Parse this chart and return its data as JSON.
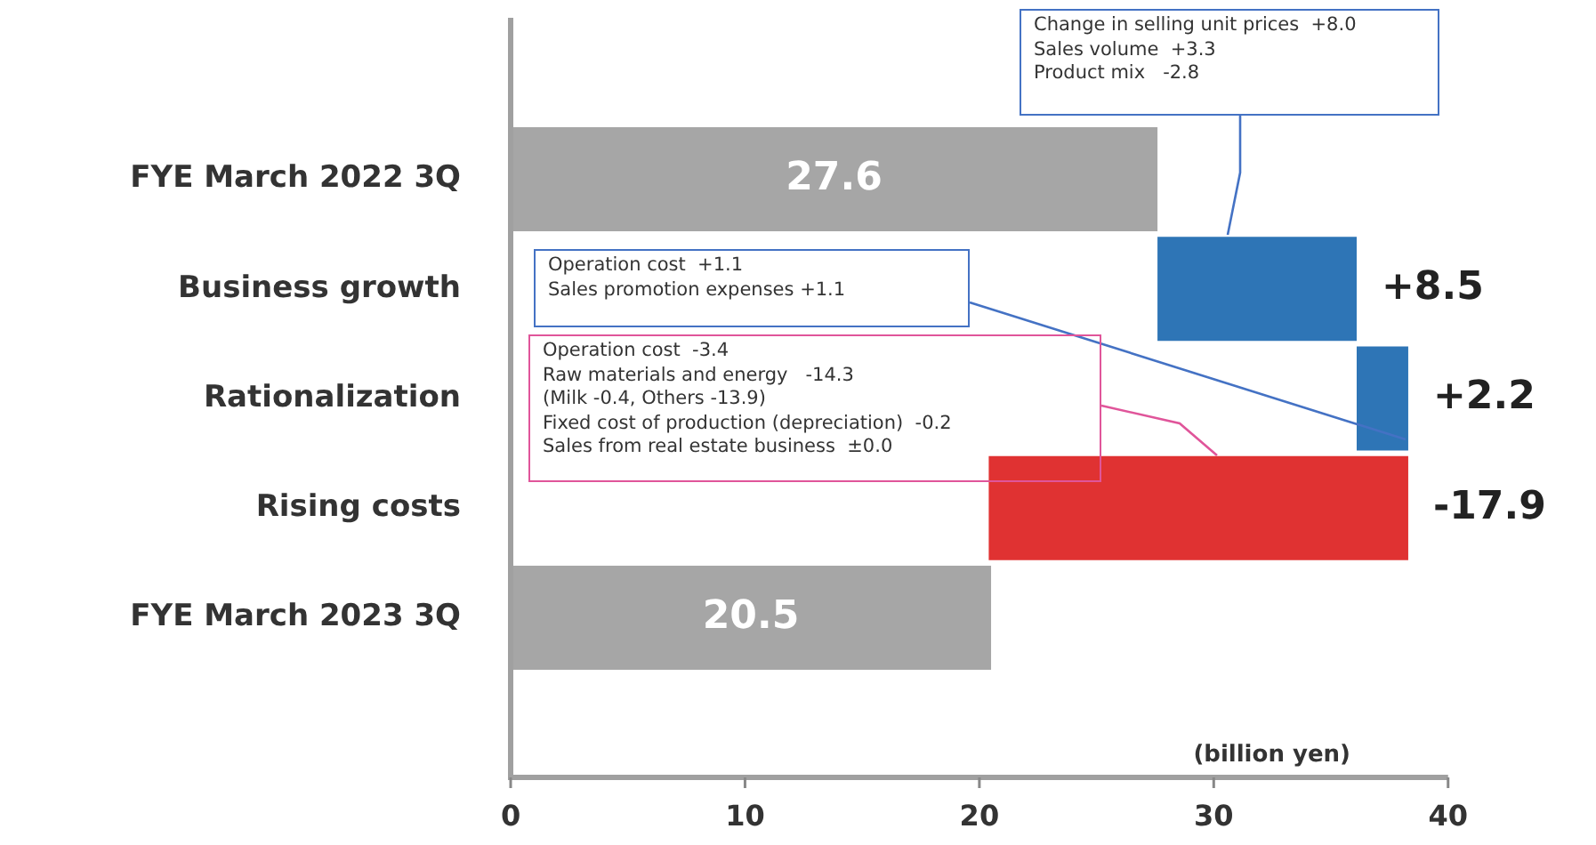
{
  "chart_data": {
    "type": "bar",
    "orientation": "horizontal",
    "xlabel": "(billion yen)",
    "categories": [
      "FYE March 2022 3Q",
      "Business growth",
      "Rationalization",
      "Rising costs",
      "FYE March 2023 3Q"
    ],
    "base": [
      0,
      27.6,
      36.1,
      38.3,
      0
    ],
    "values": [
      27.6,
      8.5,
      2.2,
      -17.9,
      20.5
    ],
    "colors": [
      "#a6a6a6",
      "#2e75b6",
      "#2e75b6",
      "#e03232",
      "#a6a6a6"
    ],
    "value_labels": [
      "27.6",
      "+8.5",
      "+2.2",
      "-17.9",
      "20.5"
    ],
    "xlim": [
      0,
      40
    ],
    "xticks": [
      0,
      10,
      20,
      30,
      40
    ],
    "grid": false,
    "legend": false,
    "annotations": [
      "Change in selling unit prices  +8.0\nSales volume  +3.3\nProduct mix   -2.8",
      "Operation cost  +1.1\nSales promotion expenses +1.1",
      "Operation cost  -3.4\nRaw materials and energy   -14.3\n(Milk -0.4, Others -13.9)\nFixed cost of production (depreciation)  -0.2\nSales from real estate business  ±0.0"
    ]
  }
}
